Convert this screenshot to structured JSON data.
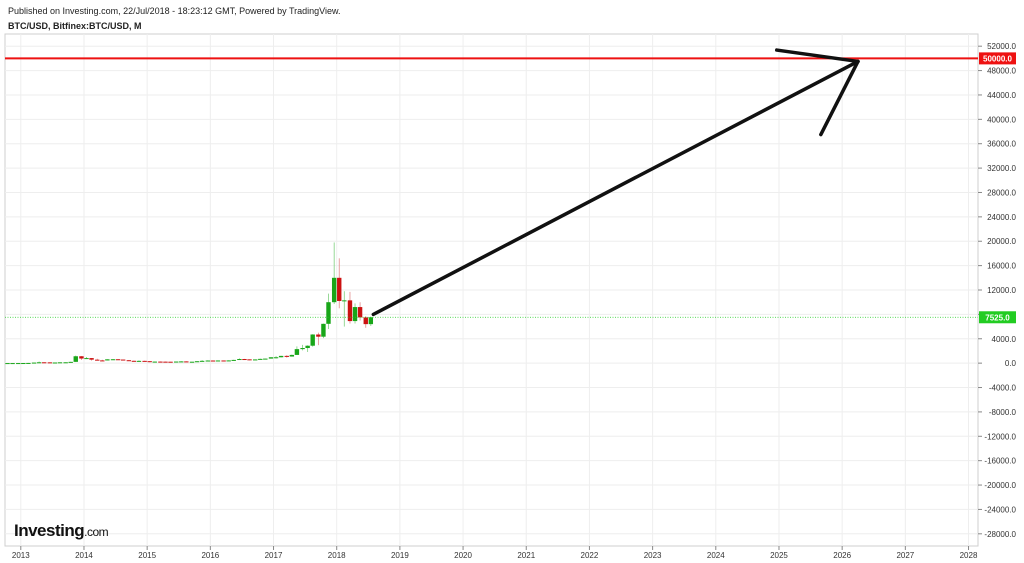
{
  "header": {
    "published": "Published on Investing.com, 22/Jul/2018 - 18:23:12 GMT, Powered by TradingView.",
    "symbol": "BTC/USD, Bitfinex:BTC/USD, M"
  },
  "logo": {
    "text": "Investing",
    "suffix": ".com"
  },
  "colors": {
    "up": "#19a619",
    "down": "#cc1111",
    "target": "#ee1111",
    "current": "#22cc22",
    "arrow": "#111111",
    "grid": "#eeeeee"
  },
  "chart_data": {
    "type": "candlestick",
    "x_range": [
      2012.75,
      2028.15
    ],
    "y_range": [
      -30000,
      54000
    ],
    "x_ticks": [
      "2013",
      "2014",
      "2015",
      "2016",
      "2017",
      "2018",
      "2019",
      "2020",
      "2021",
      "2022",
      "2023",
      "2024",
      "2025",
      "2026",
      "2027",
      "2028"
    ],
    "y_ticks": [
      "52000.0",
      "48000.0",
      "44000.0",
      "40000.0",
      "36000.0",
      "32000.0",
      "28000.0",
      "24000.0",
      "20000.0",
      "16000.0",
      "12000.0",
      "8000.0",
      "4000.0",
      "0.0",
      "-4000.0",
      "-8000.0",
      "-12000.0",
      "-16000.0",
      "-20000.0",
      "-24000.0",
      "-28000.0"
    ],
    "target_line": {
      "value": 50000,
      "label": "50000.0"
    },
    "current_price": {
      "value": 7525,
      "label": "7525.0"
    },
    "arrow": {
      "from": [
        2018.58,
        8000
      ],
      "to": [
        2026.25,
        49500
      ]
    },
    "candles": [
      {
        "t": 2012.79,
        "o": 10,
        "h": 12,
        "l": 9,
        "c": 11
      },
      {
        "t": 2012.87,
        "o": 11,
        "h": 13,
        "l": 10,
        "c": 12
      },
      {
        "t": 2012.96,
        "o": 12,
        "h": 14,
        "l": 12,
        "c": 13
      },
      {
        "t": 2013.04,
        "o": 13,
        "h": 21,
        "l": 13,
        "c": 20
      },
      {
        "t": 2013.12,
        "o": 20,
        "h": 33,
        "l": 20,
        "c": 33
      },
      {
        "t": 2013.21,
        "o": 33,
        "h": 95,
        "l": 33,
        "c": 93
      },
      {
        "t": 2013.29,
        "o": 93,
        "h": 266,
        "l": 50,
        "c": 139
      },
      {
        "t": 2013.37,
        "o": 139,
        "h": 140,
        "l": 85,
        "c": 129
      },
      {
        "t": 2013.46,
        "o": 129,
        "h": 130,
        "l": 90,
        "c": 97
      },
      {
        "t": 2013.54,
        "o": 97,
        "h": 110,
        "l": 65,
        "c": 106
      },
      {
        "t": 2013.62,
        "o": 106,
        "h": 135,
        "l": 100,
        "c": 135
      },
      {
        "t": 2013.71,
        "o": 135,
        "h": 145,
        "l": 120,
        "c": 141
      },
      {
        "t": 2013.79,
        "o": 141,
        "h": 220,
        "l": 120,
        "c": 211
      },
      {
        "t": 2013.87,
        "o": 211,
        "h": 1240,
        "l": 200,
        "c": 1130
      },
      {
        "t": 2013.96,
        "o": 1130,
        "h": 1160,
        "l": 520,
        "c": 754
      },
      {
        "t": 2014.04,
        "o": 754,
        "h": 1000,
        "l": 750,
        "c": 830
      },
      {
        "t": 2014.12,
        "o": 830,
        "h": 850,
        "l": 410,
        "c": 570
      },
      {
        "t": 2014.21,
        "o": 570,
        "h": 720,
        "l": 420,
        "c": 450
      },
      {
        "t": 2014.29,
        "o": 450,
        "h": 550,
        "l": 350,
        "c": 440
      },
      {
        "t": 2014.37,
        "o": 440,
        "h": 640,
        "l": 430,
        "c": 630
      },
      {
        "t": 2014.46,
        "o": 630,
        "h": 680,
        "l": 550,
        "c": 640
      },
      {
        "t": 2014.54,
        "o": 640,
        "h": 640,
        "l": 560,
        "c": 590
      },
      {
        "t": 2014.62,
        "o": 590,
        "h": 600,
        "l": 440,
        "c": 480
      },
      {
        "t": 2014.71,
        "o": 480,
        "h": 490,
        "l": 370,
        "c": 385
      },
      {
        "t": 2014.79,
        "o": 385,
        "h": 420,
        "l": 275,
        "c": 340
      },
      {
        "t": 2014.87,
        "o": 340,
        "h": 460,
        "l": 320,
        "c": 375
      },
      {
        "t": 2014.96,
        "o": 375,
        "h": 390,
        "l": 300,
        "c": 320
      },
      {
        "t": 2015.04,
        "o": 320,
        "h": 320,
        "l": 170,
        "c": 220
      },
      {
        "t": 2015.12,
        "o": 220,
        "h": 270,
        "l": 210,
        "c": 255
      },
      {
        "t": 2015.21,
        "o": 255,
        "h": 300,
        "l": 240,
        "c": 245
      },
      {
        "t": 2015.29,
        "o": 245,
        "h": 260,
        "l": 210,
        "c": 236
      },
      {
        "t": 2015.37,
        "o": 236,
        "h": 250,
        "l": 225,
        "c": 230
      },
      {
        "t": 2015.46,
        "o": 230,
        "h": 270,
        "l": 220,
        "c": 263
      },
      {
        "t": 2015.54,
        "o": 263,
        "h": 315,
        "l": 250,
        "c": 285
      },
      {
        "t": 2015.62,
        "o": 285,
        "h": 300,
        "l": 200,
        "c": 230
      },
      {
        "t": 2015.71,
        "o": 230,
        "h": 245,
        "l": 225,
        "c": 236
      },
      {
        "t": 2015.79,
        "o": 236,
        "h": 330,
        "l": 235,
        "c": 313
      },
      {
        "t": 2015.87,
        "o": 313,
        "h": 500,
        "l": 310,
        "c": 378
      },
      {
        "t": 2015.96,
        "o": 378,
        "h": 470,
        "l": 350,
        "c": 430
      },
      {
        "t": 2016.04,
        "o": 430,
        "h": 460,
        "l": 360,
        "c": 370
      },
      {
        "t": 2016.12,
        "o": 370,
        "h": 445,
        "l": 365,
        "c": 437
      },
      {
        "t": 2016.21,
        "o": 437,
        "h": 440,
        "l": 400,
        "c": 416
      },
      {
        "t": 2016.29,
        "o": 416,
        "h": 465,
        "l": 410,
        "c": 448
      },
      {
        "t": 2016.37,
        "o": 448,
        "h": 550,
        "l": 440,
        "c": 530
      },
      {
        "t": 2016.46,
        "o": 530,
        "h": 780,
        "l": 525,
        "c": 675
      },
      {
        "t": 2016.54,
        "o": 675,
        "h": 700,
        "l": 600,
        "c": 624
      },
      {
        "t": 2016.62,
        "o": 624,
        "h": 625,
        "l": 480,
        "c": 575
      },
      {
        "t": 2016.71,
        "o": 575,
        "h": 615,
        "l": 570,
        "c": 610
      },
      {
        "t": 2016.79,
        "o": 610,
        "h": 740,
        "l": 605,
        "c": 700
      },
      {
        "t": 2016.87,
        "o": 700,
        "h": 750,
        "l": 690,
        "c": 745
      },
      {
        "t": 2016.96,
        "o": 745,
        "h": 980,
        "l": 735,
        "c": 965
      },
      {
        "t": 2017.04,
        "o": 965,
        "h": 1150,
        "l": 750,
        "c": 965
      },
      {
        "t": 2017.12,
        "o": 965,
        "h": 1210,
        "l": 930,
        "c": 1190
      },
      {
        "t": 2017.21,
        "o": 1190,
        "h": 1300,
        "l": 890,
        "c": 1080
      },
      {
        "t": 2017.29,
        "o": 1080,
        "h": 1400,
        "l": 1070,
        "c": 1350
      },
      {
        "t": 2017.37,
        "o": 1350,
        "h": 2760,
        "l": 1340,
        "c": 2300
      },
      {
        "t": 2017.46,
        "o": 2300,
        "h": 3000,
        "l": 2100,
        "c": 2480
      },
      {
        "t": 2017.54,
        "o": 2480,
        "h": 2920,
        "l": 1830,
        "c": 2860
      },
      {
        "t": 2017.62,
        "o": 2860,
        "h": 4750,
        "l": 2700,
        "c": 4700
      },
      {
        "t": 2017.71,
        "o": 4700,
        "h": 5000,
        "l": 2950,
        "c": 4340
      },
      {
        "t": 2017.79,
        "o": 4340,
        "h": 6480,
        "l": 4100,
        "c": 6450
      },
      {
        "t": 2017.87,
        "o": 6450,
        "h": 11400,
        "l": 5600,
        "c": 10000
      },
      {
        "t": 2017.96,
        "o": 10000,
        "h": 19800,
        "l": 9700,
        "c": 14000
      },
      {
        "t": 2018.04,
        "o": 14000,
        "h": 17200,
        "l": 9000,
        "c": 10200
      },
      {
        "t": 2018.12,
        "o": 10200,
        "h": 11800,
        "l": 6000,
        "c": 10300
      },
      {
        "t": 2018.21,
        "o": 10300,
        "h": 11700,
        "l": 6500,
        "c": 6900
      },
      {
        "t": 2018.29,
        "o": 6900,
        "h": 9800,
        "l": 6500,
        "c": 9200
      },
      {
        "t": 2018.37,
        "o": 9200,
        "h": 10000,
        "l": 7000,
        "c": 7500
      },
      {
        "t": 2018.46,
        "o": 7500,
        "h": 7700,
        "l": 5800,
        "c": 6400
      },
      {
        "t": 2018.54,
        "o": 6400,
        "h": 7600,
        "l": 6100,
        "c": 7525
      }
    ]
  }
}
